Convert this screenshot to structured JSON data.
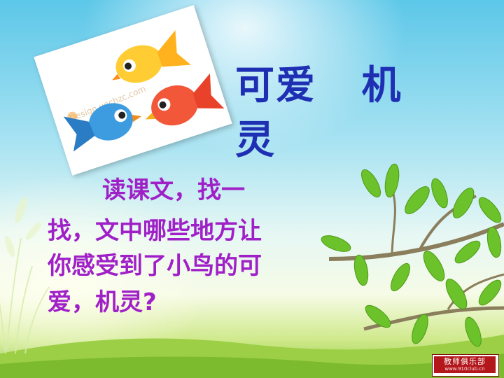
{
  "slide": {
    "title_line1": "可爱   机",
    "title_line2": "灵",
    "question_lines": [
      "读课文，找一",
      "找，文中哪些地方让",
      "你感受到了小鸟的可",
      "爱，机灵?"
    ]
  },
  "image": {
    "subject": "three-cartoon-birds",
    "watermark": "Design yechzc.com"
  },
  "badge": {
    "name": "教师俱乐部",
    "url": "www.910club.cn"
  },
  "colors": {
    "title": "#1f2fb4",
    "question": "#a020c8",
    "sky_top": "#5cc7e8",
    "grass": "#8cc63f",
    "badge_red": "#b3171c"
  }
}
